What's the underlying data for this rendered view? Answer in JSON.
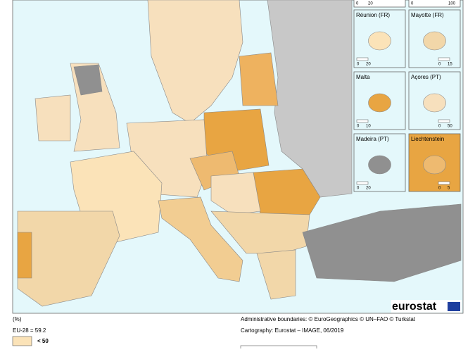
{
  "map": {
    "top_insets": [
      {
        "scale": [
          "0",
          "20"
        ]
      },
      {
        "scale": [
          "0",
          "100"
        ]
      }
    ],
    "insets": [
      {
        "label": "Réunion (FR)",
        "scale": [
          "0",
          "20"
        ]
      },
      {
        "label": "Mayotte (FR)",
        "scale": [
          "0",
          "15"
        ]
      },
      {
        "label": "Malta",
        "scale": [
          "0",
          "10"
        ]
      },
      {
        "label": "Açores (PT)",
        "scale": [
          "0",
          "50"
        ]
      },
      {
        "label": "Madeira (PT)",
        "scale": [
          "0",
          "20"
        ]
      },
      {
        "label": "Liechtenstein",
        "scale": [
          "0",
          "5"
        ]
      }
    ],
    "logo": "eurostat",
    "legend": {
      "unit": "(%)",
      "eu_average": "EU-28 = 59.2",
      "classes": [
        "< 50"
      ]
    },
    "credits": [
      "Administrative boundaries: © EuroGeographics © UN–FAO © Turkstat",
      "Cartography: Eurostat – IMAGE, 06/2019"
    ]
  }
}
